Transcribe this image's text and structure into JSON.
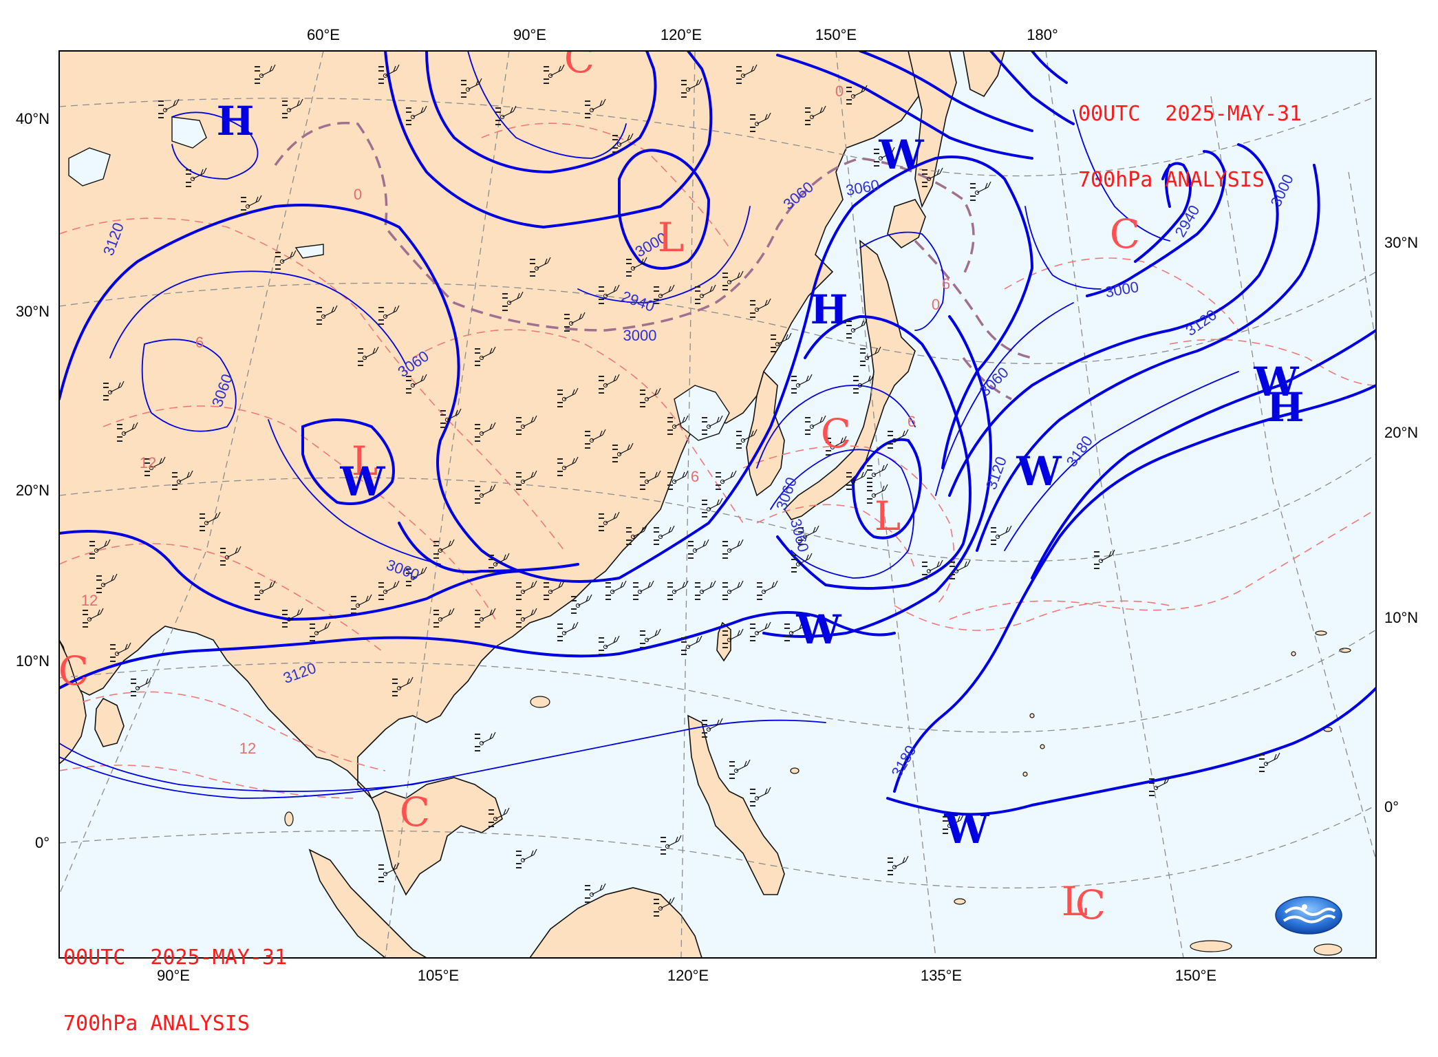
{
  "title_top": [
    "00UTC  2025-MAY-31",
    "700hPa ANALYSIS"
  ],
  "title_bottom": [
    "00UTC  2025-MAY-31",
    "700hPa ANALYSIS"
  ],
  "top_lon_labels": [
    "60°E",
    "90°E",
    "120°E",
    "150°E",
    "180°"
  ],
  "bottom_lon_labels": [
    "90°E",
    "105°E",
    "120°E",
    "135°E",
    "150°E"
  ],
  "left_lat_labels": [
    "40°N",
    "30°N",
    "20°N",
    "10°N",
    "0°"
  ],
  "right_lat_labels": [
    "30°N",
    "20°N",
    "10°N",
    "0°"
  ],
  "height_contour_labels": [
    "3120",
    "3060",
    "3060",
    "3120",
    "3060",
    "3000",
    "2940",
    "3000",
    "3060",
    "3060",
    "3000",
    "2940",
    "3060",
    "3120",
    "3060",
    "3180",
    "3120",
    "3180",
    "3060",
    "3000"
  ],
  "temp_contour_labels": [
    "6",
    "12",
    "12",
    "12",
    "0",
    "0",
    "6",
    "6",
    "6",
    "0"
  ],
  "pressure_systems": [
    {
      "letter": "H",
      "kind": "high"
    },
    {
      "letter": "L",
      "kind": "low"
    },
    {
      "letter": "L",
      "kind": "low"
    },
    {
      "letter": "L",
      "kind": "low"
    },
    {
      "letter": "L",
      "kind": "low"
    },
    {
      "letter": "H",
      "kind": "high"
    },
    {
      "letter": "H",
      "kind": "high"
    },
    {
      "letter": "W",
      "kind": "warm"
    },
    {
      "letter": "W",
      "kind": "warm"
    },
    {
      "letter": "W",
      "kind": "warm"
    },
    {
      "letter": "W",
      "kind": "warm"
    },
    {
      "letter": "W",
      "kind": "warm"
    },
    {
      "letter": "W",
      "kind": "warm"
    },
    {
      "letter": "C",
      "kind": "cold"
    },
    {
      "letter": "C",
      "kind": "cold"
    },
    {
      "letter": "C",
      "kind": "cold"
    },
    {
      "letter": "C",
      "kind": "cold"
    },
    {
      "letter": "C",
      "kind": "cold"
    },
    {
      "letter": "C",
      "kind": "cold"
    }
  ],
  "colors": {
    "land": "#fce0c0",
    "sea": "#eef8ff",
    "height_contour": "#0000e0",
    "temp_contour": "#f07878",
    "zero_isotherm": "#a07090",
    "title": "#ff1a1a",
    "grid": "#8c8c8c"
  },
  "logo": "cwa-logo-icon"
}
